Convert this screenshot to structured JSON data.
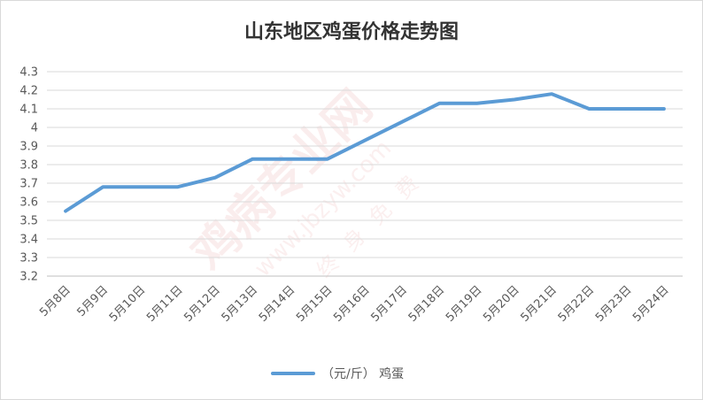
{
  "chart_data": {
    "type": "line",
    "title": "山东地区鸡蛋价格走势图",
    "xlabel": "",
    "ylabel": "",
    "categories": [
      "5月8日",
      "5月9日",
      "5月10日",
      "5月11日",
      "5月12日",
      "5月13日",
      "5月14日",
      "5月15日",
      "5月16日",
      "5月17日",
      "5月18日",
      "5月19日",
      "5月20日",
      "5月21日",
      "5月22日",
      "5月23日",
      "5月24日"
    ],
    "series": [
      {
        "name": "（元/斤） 鸡蛋",
        "color": "#5b9bd5",
        "values": [
          3.55,
          3.68,
          3.68,
          3.68,
          3.73,
          3.83,
          3.83,
          3.83,
          3.93,
          4.03,
          4.13,
          4.13,
          4.15,
          4.18,
          4.1,
          4.1,
          4.1
        ]
      }
    ],
    "ylim": [
      3.2,
      4.3
    ],
    "yticks": [
      "4.3",
      "4.2",
      "4.1",
      "4",
      "3.9",
      "3.8",
      "3.7",
      "3.6",
      "3.5",
      "3.4",
      "3.3",
      "3.2"
    ],
    "grid": true,
    "legend_position": "bottom"
  },
  "watermark": {
    "brand": "鸡病专业网",
    "url": "www.jbzyw.com",
    "slogan": "终身免费"
  }
}
